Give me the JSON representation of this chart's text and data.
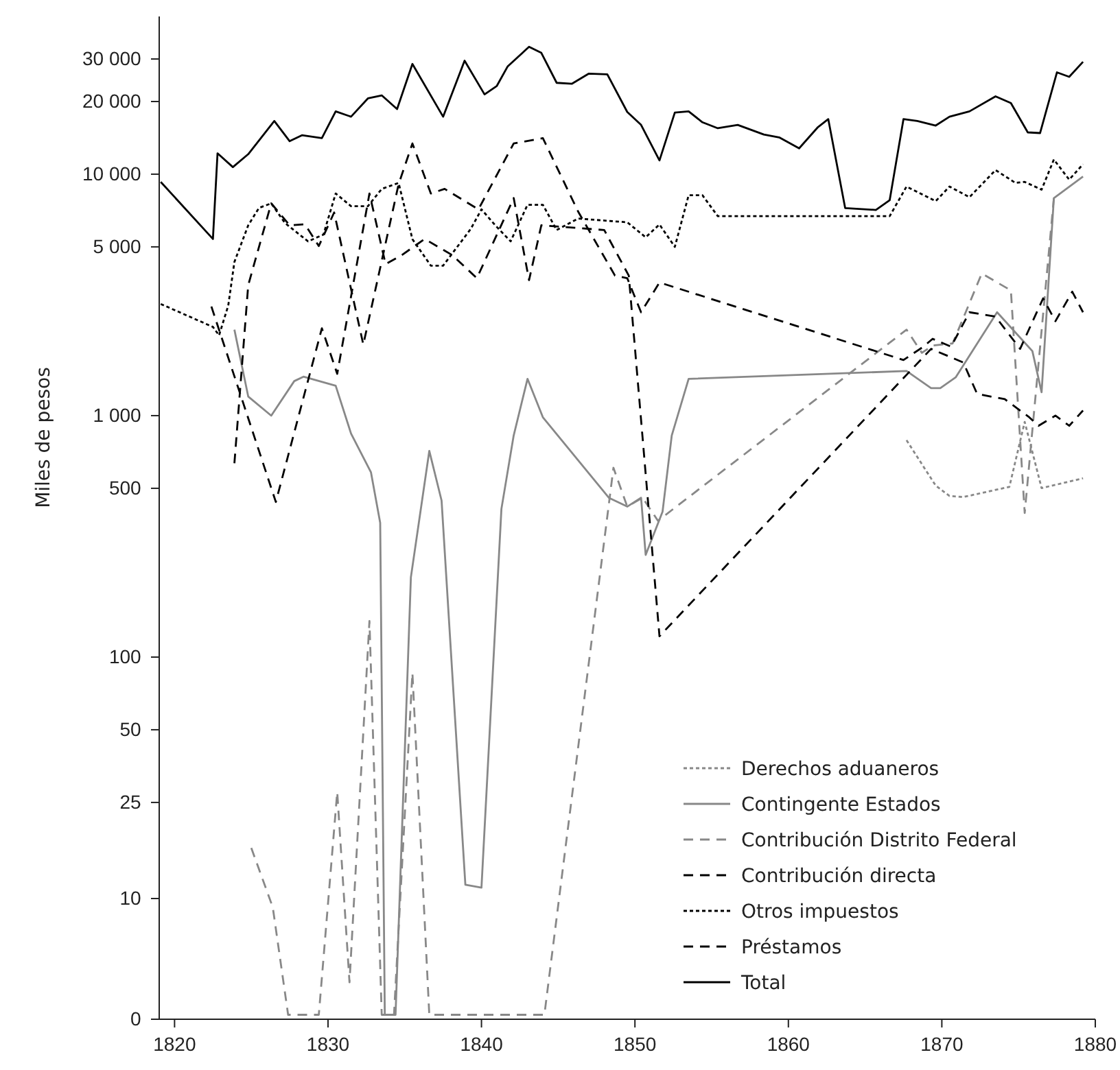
{
  "chart_data": {
    "type": "line",
    "ylabel": "Miles de pesos",
    "log": true,
    "legend": "bottom right",
    "xlim": [
      1819,
      1880
    ],
    "ylim": [
      0,
      45000
    ],
    "xticks": [
      1820,
      1830,
      1840,
      1850,
      1860,
      1870,
      1880
    ],
    "yticks": [
      0,
      10,
      25,
      50,
      100,
      500,
      {
        "value": 1000,
        "label": "1 000"
      },
      {
        "value": 5000,
        "label": "5 000"
      },
      {
        "value": 10000,
        "label": "10 000"
      },
      {
        "value": 20000,
        "label": "20 000"
      },
      {
        "value": 30000,
        "label": "30 000"
      }
    ],
    "series": [
      {
        "name": "Derechos aduaneros",
        "color": "#888888",
        "line_style": "dotted",
        "x": [
          1867.7,
          1869.6,
          1870.5,
          1871.4,
          1874.4,
          1875.4,
          1876.5,
          1879.2
        ],
        "values": [
          791,
          513,
          465,
          460,
          507,
          942,
          501,
          550
        ]
      },
      {
        "name": "Contingente Estados",
        "color": "#888888",
        "line_style": "solid",
        "x": [
          1823.9,
          1824.8,
          1826.3,
          1827.8,
          1828.4,
          1830.5,
          1831.5,
          1832.8,
          1833.4,
          1833.7,
          1834.4,
          1835.4,
          1836.6,
          1837.4,
          1838.95,
          1840.0,
          1841.3,
          1842.1,
          1843.0,
          1844.0,
          1848.3,
          1849.5,
          1850.4,
          1850.7,
          1851.8,
          1852.4,
          1853.5,
          1867.7,
          1869.3,
          1869.9,
          1870.9,
          1873.6,
          1875.9,
          1876.5,
          1877.3,
          1879.2
        ],
        "values": [
          2270,
          1200,
          1000,
          1390,
          1450,
          1330,
          843,
          582,
          360,
          3.3,
          3.3,
          214,
          714,
          445,
          11.4,
          11.1,
          411,
          828,
          1420,
          985,
          457,
          420,
          457,
          265,
          400,
          828,
          1420,
          1530,
          1300,
          1300,
          1440,
          2680,
          1850,
          1250,
          7960,
          9780
        ]
      },
      {
        "name": "Contribución Distrito Federal",
        "color": "#888888",
        "line_style": "dashed",
        "x": [
          1825.0,
          1826.4,
          1827.4,
          1829.4,
          1830.6,
          1831.4,
          1832.7,
          1833.5,
          1834.3,
          1835.5,
          1836.6,
          1844.1,
          1848.6,
          1849.5,
          1850.5,
          1851.5,
          1867.7,
          1868.7,
          1869.4,
          1870.7,
          1871.8,
          1872.6,
          1874.5,
          1875.4,
          1877.3
        ],
        "values": [
          16.2,
          9.2,
          3.3,
          3.3,
          27.6,
          4.5,
          141,
          3.3,
          3.3,
          86,
          3.3,
          3.3,
          608,
          420,
          457,
          367,
          2270,
          1820,
          1950,
          1990,
          2920,
          3880,
          3300,
          395,
          7960
        ]
      },
      {
        "name": "Contribución directa",
        "color": "#000000",
        "line_style": "dashed",
        "x": [
          1823.9,
          1824.8,
          1826.3,
          1827.5,
          1828.5,
          1829.4,
          1830.4,
          1832.3,
          1834.6,
          1835.5,
          1836.7,
          1837.6,
          1839.8,
          1842.1,
          1844.0,
          1846.3,
          1848.7,
          1849.5,
          1850.4,
          1851.6,
          1867.5,
          1868.8,
          1869.4,
          1870.6,
          1871.8,
          1873.5,
          1875.1,
          1876.6,
          1877.4,
          1878.5,
          1879.2
        ],
        "values": [
          635,
          3470,
          7570,
          6140,
          6200,
          5040,
          6940,
          1970,
          9090,
          13400,
          8320,
          8690,
          7150,
          13400,
          14100,
          7000,
          3800,
          3710,
          2680,
          3560,
          1700,
          1930,
          2080,
          1930,
          2680,
          2570,
          1890,
          3060,
          2460,
          3260,
          2680
        ]
      },
      {
        "name": "Otros impuestos",
        "color": "#000000",
        "line_style": "dotted",
        "x": [
          1819.1,
          1822.5,
          1822.9,
          1823.5,
          1823.9,
          1824.8,
          1825.5,
          1826.3,
          1827.2,
          1828.7,
          1829.7,
          1830.5,
          1831.5,
          1832.6,
          1833.5,
          1834.6,
          1835.5,
          1836.7,
          1837.5,
          1839.3,
          1840.0,
          1840.9,
          1841.9,
          1843.0,
          1844.0,
          1844.9,
          1846.3,
          1849.5,
          1850.7,
          1851.6,
          1852.6,
          1853.5,
          1854.4,
          1855.4,
          1866.6,
          1867.7,
          1869.6,
          1870.5,
          1871.8,
          1873.5,
          1874.8,
          1875.4,
          1876.5,
          1877.3,
          1878.3,
          1879.2
        ],
        "values": [
          2900,
          2330,
          2150,
          2860,
          4330,
          6140,
          7250,
          7570,
          6270,
          5270,
          5620,
          8320,
          7370,
          7370,
          8690,
          9200,
          5380,
          4180,
          4180,
          5930,
          7150,
          6140,
          5270,
          7470,
          7470,
          5870,
          6550,
          6320,
          5480,
          6190,
          5000,
          8180,
          8180,
          6700,
          6700,
          8890,
          7730,
          8890,
          8030,
          10400,
          9200,
          9290,
          8630,
          11500,
          9490,
          11000
        ]
      },
      {
        "name": "Préstamos",
        "color": "#000000",
        "line_style": "dashed",
        "x": [
          1822.4,
          1826.6,
          1829.6,
          1830.6,
          1832.7,
          1833.75,
          1834.8,
          1836.3,
          1838.1,
          1839.7,
          1842.1,
          1843.1,
          1843.9,
          1848.0,
          1849.6,
          1851.6,
          1869.3,
          1871.4,
          1872.3,
          1874.1,
          1875.7,
          1876.3,
          1877.4,
          1878.3,
          1879.2
        ],
        "values": [
          2830,
          439,
          2300,
          1490,
          8320,
          4240,
          4620,
          5390,
          4620,
          3710,
          7960,
          3640,
          6140,
          5870,
          3800,
          122,
          1890,
          1660,
          1230,
          1170,
          984,
          908,
          1000,
          908,
          1050
        ]
      },
      {
        "name": "Total",
        "color": "#000000",
        "line_style": "solid",
        "x": [
          1819.1,
          1822.5,
          1822.8,
          1823.8,
          1824.8,
          1826.5,
          1827.5,
          1828.3,
          1829.6,
          1830.5,
          1831.5,
          1832.6,
          1833.5,
          1834.5,
          1835.5,
          1837.5,
          1838.9,
          1840.2,
          1841.0,
          1841.7,
          1843.1,
          1843.9,
          1844.9,
          1845.9,
          1847.0,
          1848.2,
          1849.5,
          1850.4,
          1851.6,
          1852.6,
          1853.5,
          1854.4,
          1855.4,
          1856.7,
          1858.4,
          1859.4,
          1860.7,
          1861.9,
          1862.6,
          1863.7,
          1865.7,
          1866.6,
          1867.5,
          1868.4,
          1869.6,
          1870.5,
          1871.8,
          1873.5,
          1874.5,
          1875.6,
          1876.4,
          1877.5,
          1878.3,
          1879.2
        ],
        "values": [
          9290,
          5390,
          12200,
          10700,
          12100,
          16600,
          13700,
          14500,
          14100,
          18200,
          17300,
          20600,
          21200,
          18600,
          28600,
          17300,
          29500,
          21400,
          23200,
          27900,
          33700,
          31800,
          23900,
          23700,
          26100,
          25900,
          18100,
          16000,
          11400,
          18000,
          18200,
          16400,
          15500,
          16000,
          14600,
          14200,
          12800,
          15600,
          16900,
          7240,
          7110,
          7800,
          16900,
          16600,
          15900,
          17300,
          18200,
          21000,
          19700,
          14900,
          14800,
          26400,
          25300,
          29200
        ]
      }
    ]
  }
}
